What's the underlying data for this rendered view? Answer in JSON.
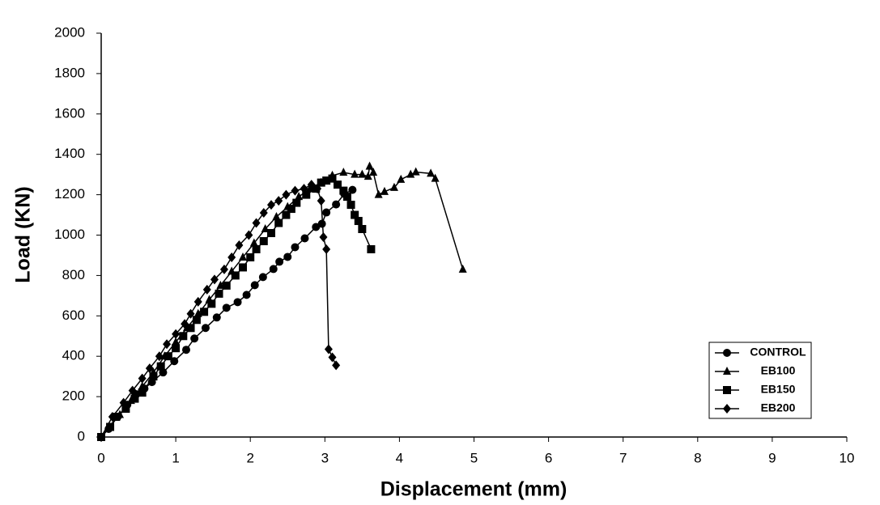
{
  "chart_data": {
    "type": "line",
    "x_label": "Displacement (mm)",
    "y_label": "Load (KN)",
    "xlim": [
      0,
      10
    ],
    "xticks": [
      0,
      1,
      2,
      3,
      4,
      5,
      6,
      7,
      8,
      9,
      10
    ],
    "ylim": [
      0,
      2000
    ],
    "yticks": [
      0,
      200,
      400,
      600,
      800,
      1000,
      1200,
      1400,
      1600,
      1800,
      2000
    ],
    "grid": false,
    "legend": "lower right",
    "series": [
      {
        "name": "CONTROL",
        "color": "#000000",
        "marker": "circle",
        "x": [
          0,
          0.1,
          0.22,
          0.35,
          0.47,
          0.58,
          0.68,
          0.83,
          0.98,
          1.14,
          1.25,
          1.4,
          1.55,
          1.68,
          1.83,
          1.95,
          2.06,
          2.17,
          2.31,
          2.39,
          2.5,
          2.6,
          2.73,
          2.88,
          2.96,
          3.02,
          3.15,
          3.26,
          3.37
        ],
        "values": [
          0,
          40,
          100,
          160,
          212,
          240,
          272,
          320,
          376,
          432,
          488,
          540,
          592,
          640,
          668,
          704,
          752,
          792,
          832,
          868,
          892,
          940,
          984,
          1040,
          1056,
          1112,
          1152,
          1204,
          1224
        ]
      },
      {
        "name": "EB100",
        "color": "#000000",
        "marker": "triangle",
        "x": [
          0,
          0.1,
          0.25,
          0.4,
          0.55,
          0.7,
          0.85,
          1.0,
          1.15,
          1.3,
          1.45,
          1.6,
          1.75,
          1.9,
          2.05,
          2.2,
          2.35,
          2.5,
          2.65,
          2.8,
          2.95,
          3.1,
          3.25,
          3.4,
          3.5,
          3.58,
          3.6,
          3.65,
          3.72,
          3.8,
          3.93,
          4.02,
          4.15,
          4.22,
          4.42,
          4.48,
          4.85
        ],
        "values": [
          0,
          50,
          110,
          180,
          250,
          320,
          400,
          470,
          540,
          610,
          680,
          750,
          820,
          890,
          960,
          1030,
          1090,
          1140,
          1190,
          1230,
          1260,
          1295,
          1310,
          1300,
          1300,
          1290,
          1340,
          1310,
          1200,
          1215,
          1235,
          1275,
          1300,
          1312,
          1305,
          1280,
          830
        ]
      },
      {
        "name": "EB150",
        "color": "#000000",
        "marker": "square",
        "x": [
          0,
          0.12,
          0.2,
          0.33,
          0.45,
          0.55,
          0.7,
          0.8,
          0.9,
          1.0,
          1.1,
          1.2,
          1.28,
          1.38,
          1.48,
          1.58,
          1.68,
          1.8,
          1.9,
          2.0,
          2.08,
          2.18,
          2.28,
          2.38,
          2.48,
          2.55,
          2.62,
          2.75,
          2.88,
          2.95,
          3.02,
          3.1,
          3.17,
          3.25,
          3.3,
          3.35,
          3.4,
          3.45,
          3.5,
          3.62
        ],
        "values": [
          0,
          50,
          100,
          140,
          190,
          220,
          300,
          350,
          400,
          440,
          500,
          540,
          580,
          620,
          660,
          710,
          750,
          800,
          840,
          890,
          930,
          970,
          1010,
          1060,
          1100,
          1130,
          1160,
          1200,
          1230,
          1260,
          1270,
          1280,
          1250,
          1220,
          1190,
          1150,
          1100,
          1070,
          1030,
          930
        ]
      },
      {
        "name": "EB200",
        "color": "#000000",
        "marker": "diamond",
        "x": [
          0,
          0.15,
          0.3,
          0.42,
          0.55,
          0.65,
          0.78,
          0.88,
          1.0,
          1.12,
          1.2,
          1.3,
          1.42,
          1.52,
          1.65,
          1.75,
          1.85,
          1.98,
          2.08,
          2.18,
          2.28,
          2.38,
          2.48,
          2.6,
          2.72,
          2.82,
          2.9,
          2.95,
          2.98,
          3.02,
          3.05,
          3.1,
          3.15
        ],
        "values": [
          0,
          100,
          170,
          230,
          290,
          340,
          400,
          460,
          510,
          560,
          610,
          670,
          730,
          780,
          830,
          890,
          950,
          1000,
          1060,
          1110,
          1150,
          1170,
          1200,
          1220,
          1230,
          1250,
          1230,
          1170,
          990,
          930,
          435,
          395,
          355
        ]
      }
    ]
  }
}
